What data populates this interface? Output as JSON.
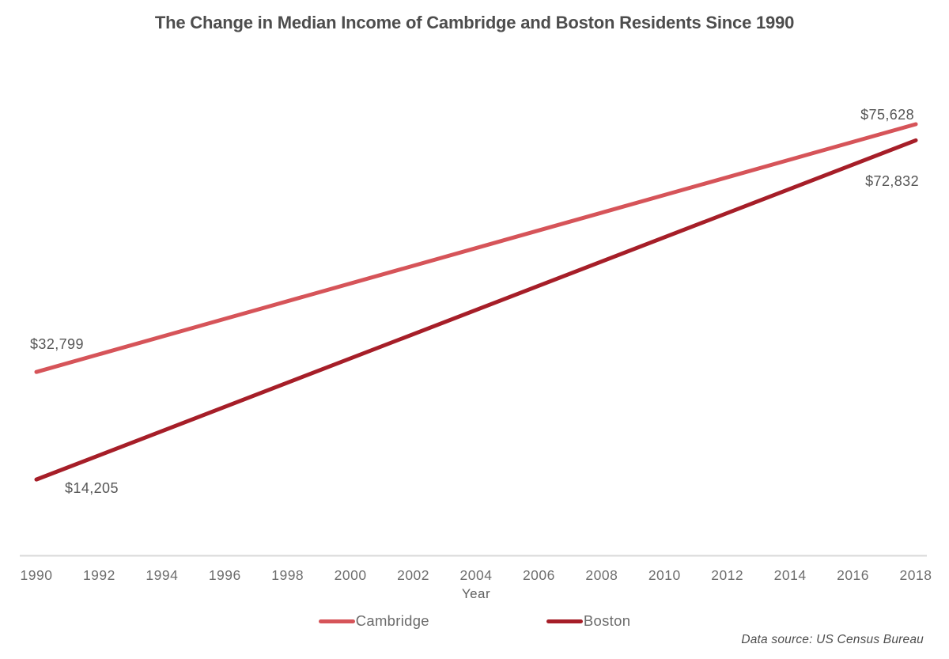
{
  "title": "The Change in Median Income of Cambridge and Boston Residents Since 1990",
  "chart_data": {
    "type": "line",
    "x": [
      1990,
      2018
    ],
    "xlim": [
      1990,
      2018
    ],
    "ylim": [
      0,
      80000
    ],
    "grid": false,
    "legend_position": "bottom",
    "xlabel": "Year",
    "x_ticks": [
      "1990",
      "1992",
      "1994",
      "1996",
      "1998",
      "2000",
      "2002",
      "2004",
      "2006",
      "2008",
      "2010",
      "2012",
      "2014",
      "2016",
      "2018"
    ],
    "series": [
      {
        "name": "Cambridge",
        "color": "#D65459",
        "values": [
          32799,
          75628
        ],
        "point_labels": [
          "$32,799",
          "$75,628"
        ]
      },
      {
        "name": "Boston",
        "color": "#A61E28",
        "values": [
          14205,
          72832
        ],
        "point_labels": [
          "$14,205",
          "$72,832"
        ]
      }
    ]
  },
  "footer": {
    "source": "Data source: US Census Bureau"
  },
  "colors": {
    "axis_line": "#d9d9d9",
    "tick_text": "#6e6e6e",
    "data_label_text": "#565656",
    "title_text": "#4d4d4d"
  }
}
